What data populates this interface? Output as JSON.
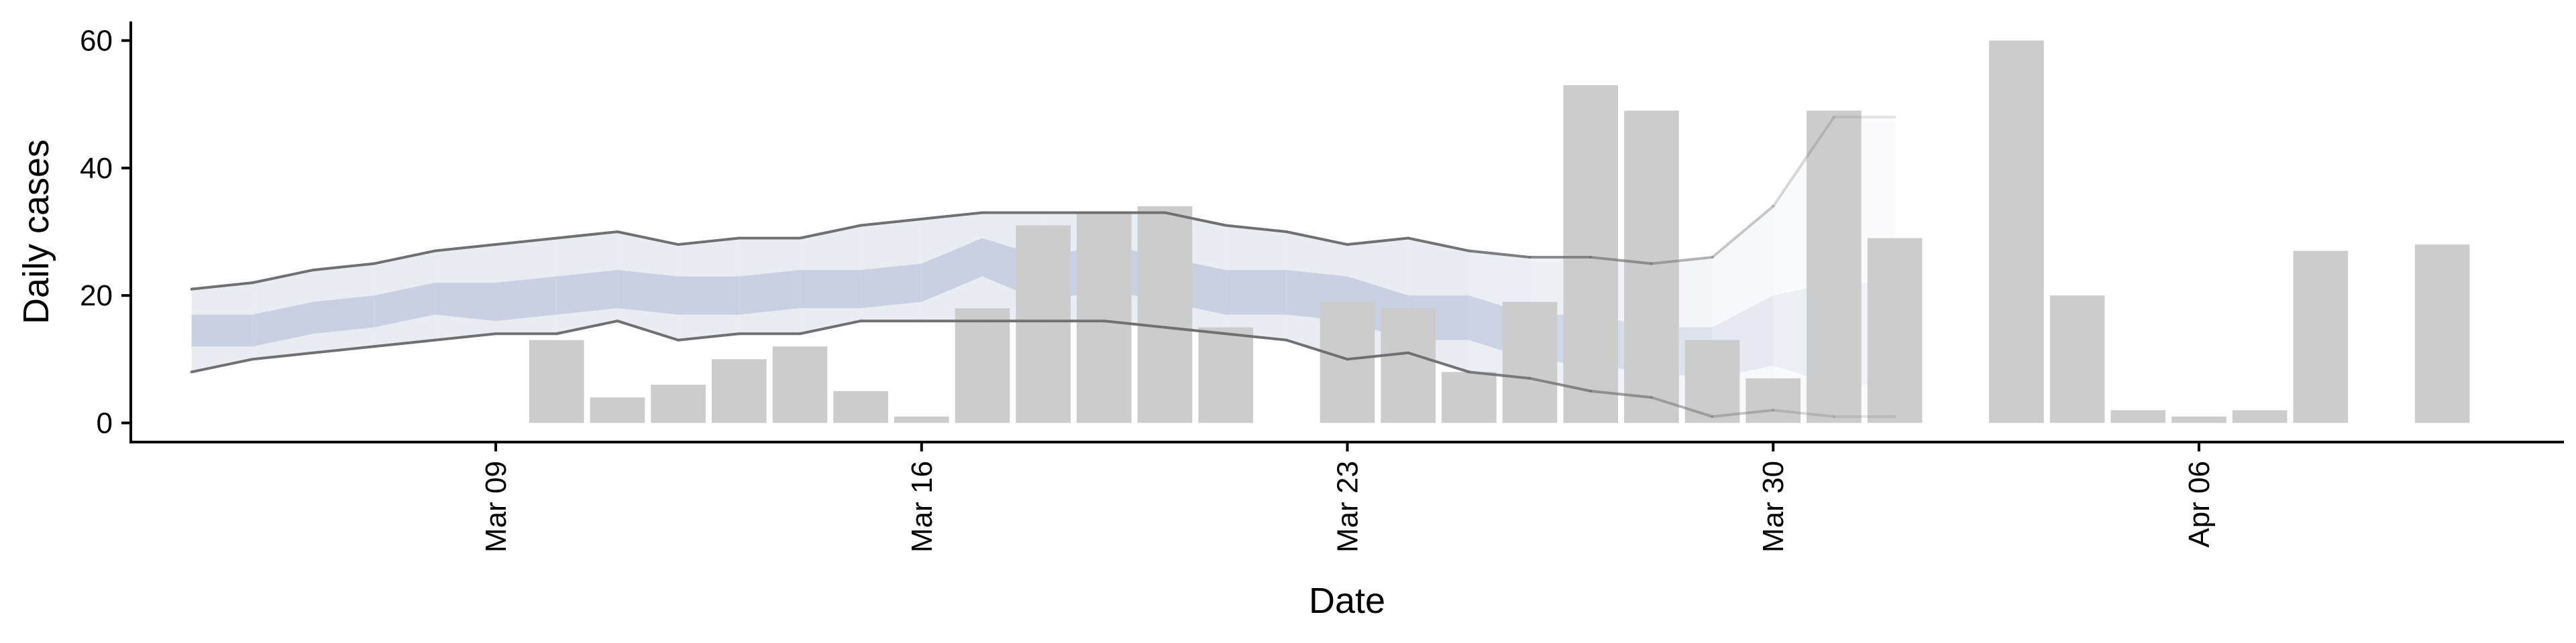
{
  "chart_data": {
    "type": "bar",
    "xlabel": "Date",
    "ylabel": "Daily cases",
    "ylim": [
      -3,
      63
    ],
    "xlim": [
      "2020-03-03",
      "2020-04-12"
    ],
    "y_ticks": [
      0,
      20,
      40,
      60
    ],
    "x_ticks": [
      {
        "date": "2020-03-09",
        "label": "Mar 09"
      },
      {
        "date": "2020-03-16",
        "label": "Mar 16"
      },
      {
        "date": "2020-03-23",
        "label": "Mar 23"
      },
      {
        "date": "2020-03-30",
        "label": "Mar 30"
      },
      {
        "date": "2020-04-06",
        "label": "Apr 06"
      }
    ],
    "grid": false,
    "legend": "none",
    "colors": {
      "bars": "#cccccc",
      "outer_band": "#e9ecf3",
      "inner_band": "#c5cde0",
      "bound_lines": "#707070",
      "axis": "#000000"
    },
    "bars": {
      "name": "Daily cases",
      "dates": [
        "2020-03-10",
        "2020-03-11",
        "2020-03-12",
        "2020-03-13",
        "2020-03-14",
        "2020-03-15",
        "2020-03-16",
        "2020-03-17",
        "2020-03-18",
        "2020-03-19",
        "2020-03-20",
        "2020-03-21",
        "2020-03-23",
        "2020-03-24",
        "2020-03-25",
        "2020-03-26",
        "2020-03-27",
        "2020-03-28",
        "2020-03-29",
        "2020-03-30",
        "2020-03-31",
        "2020-04-01",
        "2020-04-03",
        "2020-04-04",
        "2020-04-05",
        "2020-04-06",
        "2020-04-07",
        "2020-04-08",
        "2020-04-10"
      ],
      "values": [
        13,
        4,
        6,
        10,
        12,
        5,
        1,
        18,
        31,
        33,
        34,
        15,
        19,
        18,
        8,
        19,
        53,
        49,
        13,
        7,
        49,
        29,
        60,
        20,
        2,
        1,
        2,
        27,
        28
      ]
    },
    "estimate": {
      "dates": [
        "2020-03-04",
        "2020-03-05",
        "2020-03-06",
        "2020-03-07",
        "2020-03-08",
        "2020-03-09",
        "2020-03-10",
        "2020-03-11",
        "2020-03-12",
        "2020-03-13",
        "2020-03-14",
        "2020-03-15",
        "2020-03-16",
        "2020-03-17",
        "2020-03-18",
        "2020-03-19",
        "2020-03-20",
        "2020-03-21",
        "2020-03-22",
        "2020-03-23",
        "2020-03-24",
        "2020-03-25",
        "2020-03-26",
        "2020-03-27",
        "2020-03-28",
        "2020-03-29",
        "2020-03-30",
        "2020-03-31",
        "2020-04-01"
      ],
      "upper_90": [
        21,
        22,
        24,
        25,
        27,
        28,
        29,
        30,
        28,
        29,
        29,
        31,
        32,
        33,
        33,
        33,
        33,
        31,
        30,
        28,
        29,
        27,
        26,
        26,
        25,
        26,
        34,
        48,
        48
      ],
      "lower_90": [
        8,
        10,
        11,
        12,
        13,
        14,
        14,
        16,
        13,
        14,
        14,
        16,
        16,
        16,
        16,
        16,
        15,
        14,
        13,
        10,
        11,
        8,
        7,
        5,
        4,
        1,
        2,
        1,
        1
      ],
      "upper_50": [
        17,
        17,
        19,
        20,
        22,
        22,
        23,
        24,
        23,
        23,
        24,
        24,
        25,
        29,
        26,
        28,
        26,
        24,
        24,
        23,
        20,
        20,
        17,
        17,
        15,
        15,
        20,
        22,
        22
      ],
      "lower_50": [
        12,
        12,
        14,
        15,
        17,
        16,
        17,
        18,
        17,
        17,
        18,
        18,
        19,
        23,
        19,
        21,
        19,
        17,
        17,
        16,
        13,
        13,
        10,
        9,
        8,
        7,
        9,
        6,
        6
      ],
      "opacity": [
        1,
        1,
        1,
        1,
        1,
        1,
        1,
        1,
        1,
        1,
        1,
        1,
        1,
        1,
        1,
        1,
        1,
        1,
        1,
        1,
        1,
        0.95,
        0.85,
        0.75,
        0.6,
        0.45,
        0.32,
        0.22,
        0.15
      ]
    }
  }
}
